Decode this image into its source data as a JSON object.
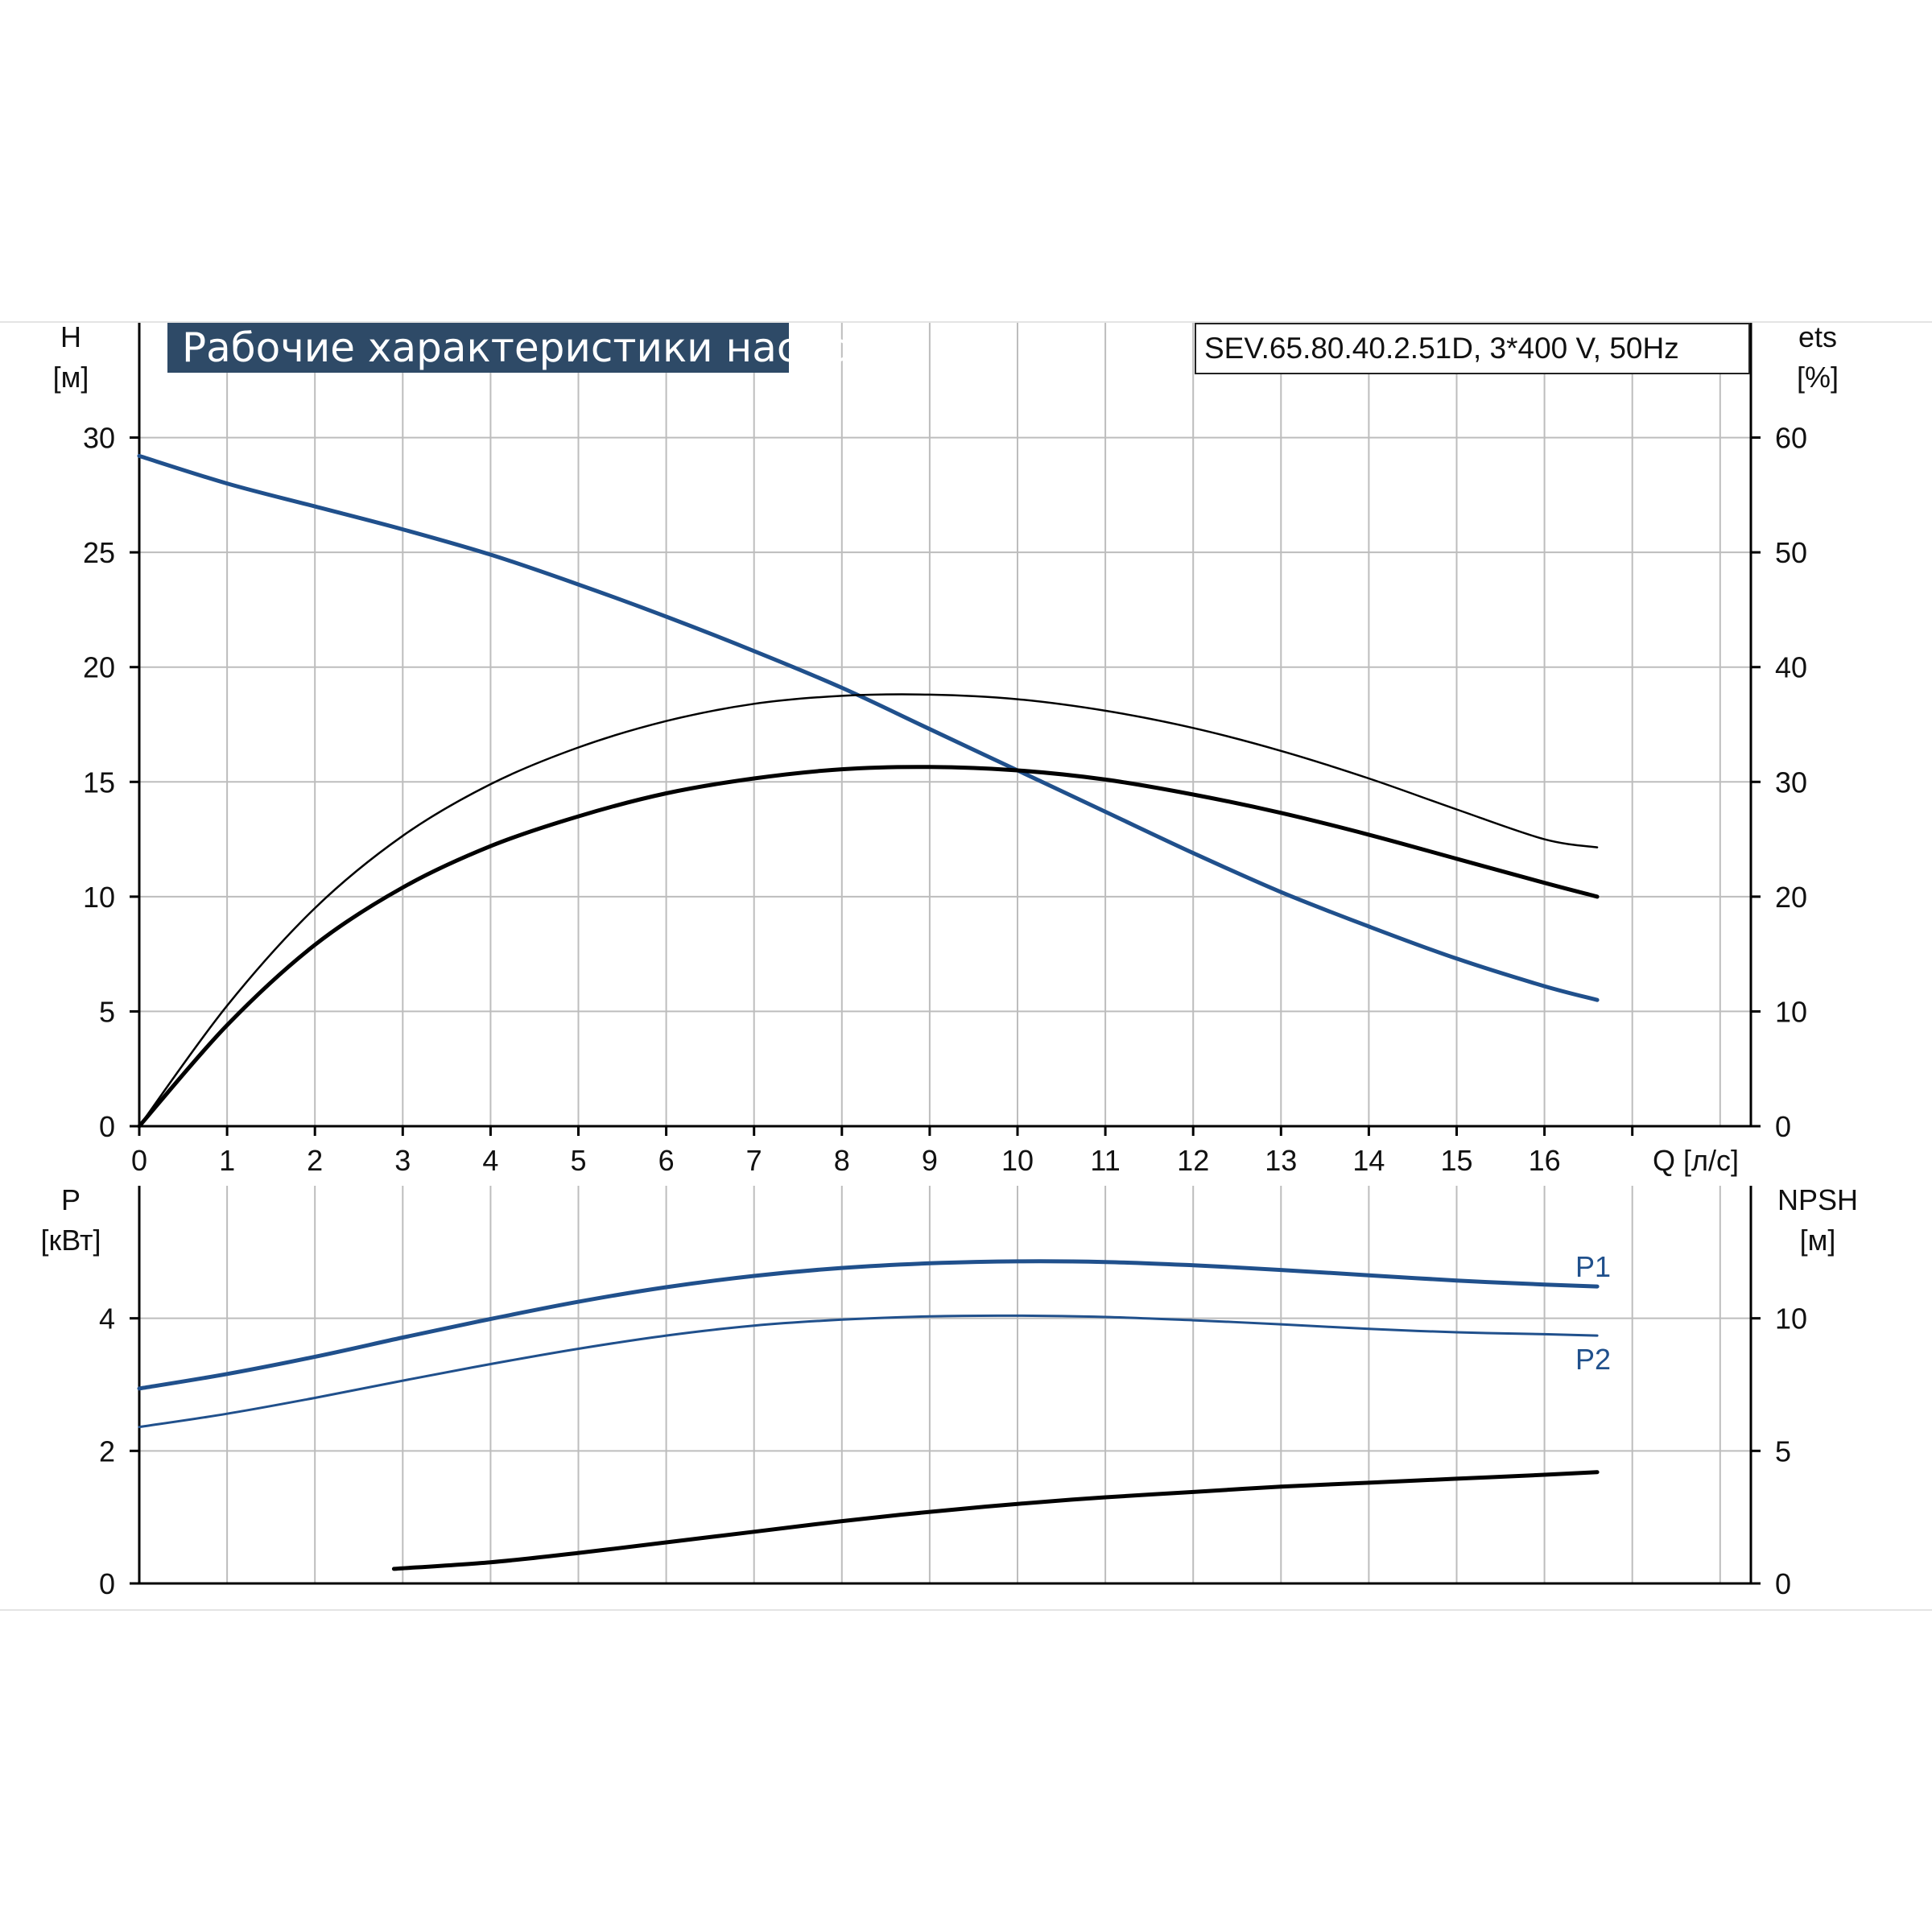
{
  "title": "Рабочие характеристики насоса",
  "model": "SEV.65.80.40.2.51D, 3*400 V, 50Hz",
  "colors": {
    "blue": "#20508c",
    "black": "#000000",
    "grid": "#bdbdbd",
    "title_bg": "#2e4a67"
  },
  "chart_data": [
    {
      "type": "line",
      "xlabel": "Q [л/с]",
      "x_ticks": [
        "0",
        "1",
        "2",
        "3",
        "4",
        "5",
        "6",
        "7",
        "8",
        "9",
        "10",
        "11",
        "12",
        "13",
        "14",
        "15",
        "16"
      ],
      "xlim": [
        0,
        18.25
      ],
      "y_left": {
        "label_top": "H",
        "label_bottom": "[м]",
        "ylim": [
          0,
          35
        ],
        "ticks": [
          "0",
          "5",
          "10",
          "15",
          "20",
          "25",
          "30"
        ]
      },
      "y_right": {
        "label_top": "ets",
        "label_bottom": "[%]",
        "ylim": [
          0,
          70
        ],
        "ticks": [
          "0",
          "10",
          "20",
          "30",
          "40",
          "50",
          "60"
        ]
      },
      "grid": true,
      "series": [
        {
          "axis": "left",
          "color": "#20508c",
          "width": 5,
          "x": [
            0,
            1,
            2,
            3,
            4,
            5,
            6,
            7,
            8,
            9,
            10,
            11,
            12,
            13,
            14,
            15,
            16,
            16.6
          ],
          "y": [
            29.2,
            28.0,
            27.0,
            26.0,
            24.9,
            23.6,
            22.2,
            20.7,
            19.1,
            17.3,
            15.5,
            13.7,
            11.9,
            10.2,
            8.7,
            7.3,
            6.1,
            5.5
          ]
        },
        {
          "axis": "right",
          "color": "#000000",
          "width": 2.5,
          "x": [
            0,
            1,
            2,
            3,
            4,
            5,
            6,
            7,
            8,
            9,
            10,
            11,
            12,
            13,
            14,
            15,
            16,
            16.6
          ],
          "y": [
            0,
            10.5,
            19.0,
            25.3,
            29.8,
            33.0,
            35.3,
            36.8,
            37.5,
            37.6,
            37.2,
            36.2,
            34.7,
            32.7,
            30.3,
            27.6,
            25.0,
            24.3
          ]
        },
        {
          "axis": "right",
          "color": "#000000",
          "width": 5,
          "x": [
            0,
            1,
            2,
            3,
            4,
            5,
            6,
            7,
            8,
            9,
            10,
            11,
            12,
            13,
            14,
            15,
            16,
            16.6
          ],
          "y": [
            0,
            8.8,
            15.8,
            20.8,
            24.4,
            27.0,
            29.0,
            30.3,
            31.1,
            31.3,
            31.0,
            30.2,
            28.9,
            27.3,
            25.4,
            23.3,
            21.2,
            20.0
          ]
        }
      ]
    },
    {
      "type": "line",
      "xlim": [
        0,
        18.25
      ],
      "y_left": {
        "label_top": "P",
        "label_bottom": "[кВт]",
        "ylim": [
          0,
          6
        ],
        "ticks": [
          "0",
          "2",
          "4"
        ]
      },
      "y_right": {
        "label_top": "NPSH",
        "label_bottom": "[м]",
        "ylim": [
          0,
          15
        ],
        "ticks": [
          "0",
          "5",
          "10"
        ]
      },
      "grid": true,
      "series": [
        {
          "name": "P1",
          "axis": "left",
          "color": "#20508c",
          "width": 5,
          "x": [
            0,
            1,
            2,
            3,
            4,
            5,
            6,
            7,
            8,
            9,
            10,
            11,
            12,
            13,
            14,
            15,
            16,
            16.6
          ],
          "y": [
            2.94,
            3.16,
            3.42,
            3.71,
            3.99,
            4.25,
            4.47,
            4.64,
            4.76,
            4.83,
            4.86,
            4.85,
            4.8,
            4.73,
            4.65,
            4.57,
            4.51,
            4.48
          ]
        },
        {
          "name": "P2",
          "axis": "left",
          "color": "#20508c",
          "width": 3,
          "x": [
            0,
            1,
            2,
            3,
            4,
            5,
            6,
            7,
            8,
            9,
            10,
            11,
            12,
            13,
            14,
            15,
            16,
            16.6
          ],
          "y": [
            2.36,
            2.56,
            2.8,
            3.06,
            3.31,
            3.54,
            3.74,
            3.89,
            3.98,
            4.03,
            4.04,
            4.02,
            3.97,
            3.91,
            3.84,
            3.79,
            3.76,
            3.74
          ]
        },
        {
          "axis": "right",
          "color": "#000000",
          "width": 5,
          "x": [
            2.9,
            4,
            5,
            6,
            7,
            8,
            9,
            10,
            11,
            12,
            13,
            14,
            15,
            16,
            16.6
          ],
          "y": [
            0.55,
            0.8,
            1.15,
            1.55,
            1.95,
            2.35,
            2.7,
            3.0,
            3.25,
            3.45,
            3.65,
            3.8,
            3.95,
            4.1,
            4.2
          ]
        }
      ]
    }
  ]
}
